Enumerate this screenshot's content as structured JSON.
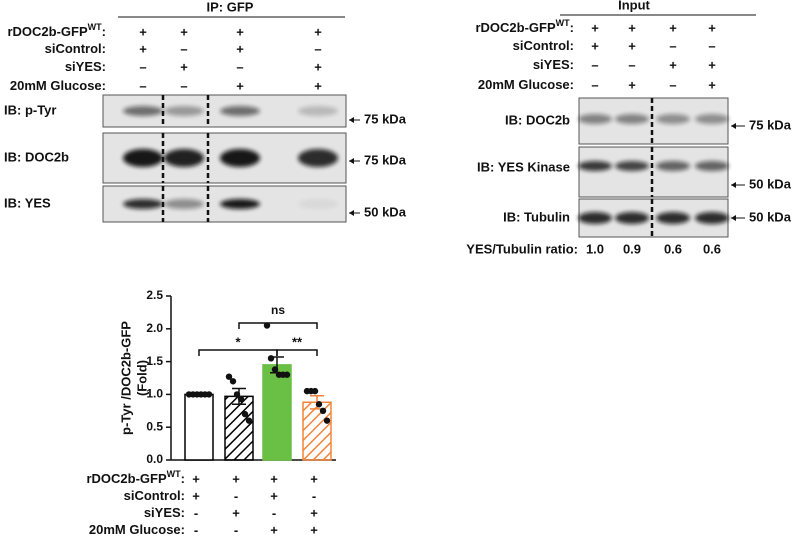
{
  "ip_panel": {
    "title": "IP: GFP",
    "conditions": [
      {
        "label": "rDOC2b-GFP",
        "sup": "WT",
        "end": ":",
        "signs": [
          "+",
          "+",
          "+",
          "+"
        ]
      },
      {
        "label": "siControl:",
        "signs": [
          "+",
          "–",
          "+",
          "–"
        ]
      },
      {
        "label": "siYES:",
        "signs": [
          "–",
          "+",
          "–",
          "+"
        ]
      },
      {
        "label": "20mM Glucose:",
        "signs": [
          "–",
          "–",
          "+",
          "+"
        ]
      }
    ],
    "blots": [
      {
        "label": "IB: p-Tyr",
        "marker": "75 kDa"
      },
      {
        "label": "IB: DOC2b",
        "marker": "75 kDa"
      },
      {
        "label": "IB: YES",
        "marker": "50 kDa"
      }
    ]
  },
  "input_panel": {
    "title": "Input",
    "conditions": [
      {
        "label": "rDOC2b-GFP",
        "sup": "WT",
        "end": ":",
        "signs": [
          "+",
          "+",
          "+",
          "+"
        ]
      },
      {
        "label": "siControl:",
        "signs": [
          "+",
          "+",
          "–",
          "–"
        ]
      },
      {
        "label": "siYES:",
        "signs": [
          "–",
          "–",
          "+",
          "+"
        ]
      },
      {
        "label": "20mM Glucose:",
        "signs": [
          "–",
          "+",
          "–",
          "+"
        ]
      }
    ],
    "blots": [
      {
        "label": "IB: DOC2b",
        "marker": "75 kDa"
      },
      {
        "label": "IB: YES Kinase",
        "marker": "50 kDa"
      },
      {
        "label": "IB: Tubulin",
        "marker": "50 kDa"
      }
    ],
    "ratio": {
      "label": "YES/Tubulin ratio:",
      "values": [
        "1.0",
        "0.9",
        "0.6",
        "0.6"
      ]
    }
  },
  "chart_data": {
    "type": "bar",
    "ylabel": [
      "p-Tyr /DOC2b-GFP",
      "(Fold)"
    ],
    "categories": [
      null,
      null,
      null,
      null
    ],
    "values": [
      1.0,
      0.97,
      1.45,
      0.88
    ],
    "errors": [
      0,
      0.12,
      0.12,
      0.1
    ],
    "points": [
      [
        1.0,
        1.0,
        1.0,
        1.0,
        1.0,
        1.0
      ],
      [
        1.27,
        1.2,
        1.0,
        0.93,
        0.7,
        0.6
      ],
      [
        2.05,
        1.55,
        1.38,
        1.3,
        1.3,
        1.3
      ],
      [
        1.05,
        1.05,
        1.05,
        0.85,
        0.75,
        0.6
      ]
    ],
    "colors": [
      "#ffffff",
      "#000000",
      "#6abf45",
      "#f2843a"
    ],
    "hatch": [
      false,
      true,
      false,
      true
    ],
    "ylim": [
      0,
      2.5
    ],
    "yticks": [
      {
        "value": 0,
        "label": "0.0"
      },
      0.5,
      {
        "value": 1,
        "label": "1.0"
      },
      1.5,
      {
        "value": 2,
        "label": "2.0"
      },
      2.5
    ],
    "annotations": [
      "*",
      "**",
      "ns"
    ],
    "conditions": [
      {
        "label": "rDOC2b-GFP",
        "sup": "WT",
        "end": ":",
        "signs": [
          "+",
          "+",
          "+",
          "+"
        ]
      },
      {
        "label": "siControl:",
        "signs": [
          "+",
          "-",
          "+",
          "-"
        ]
      },
      {
        "label": "siYES:",
        "signs": [
          "-",
          "+",
          "-",
          "+"
        ]
      },
      {
        "label": "20mM Glucose:",
        "signs": [
          "-",
          "-",
          "+",
          "+"
        ]
      }
    ]
  }
}
